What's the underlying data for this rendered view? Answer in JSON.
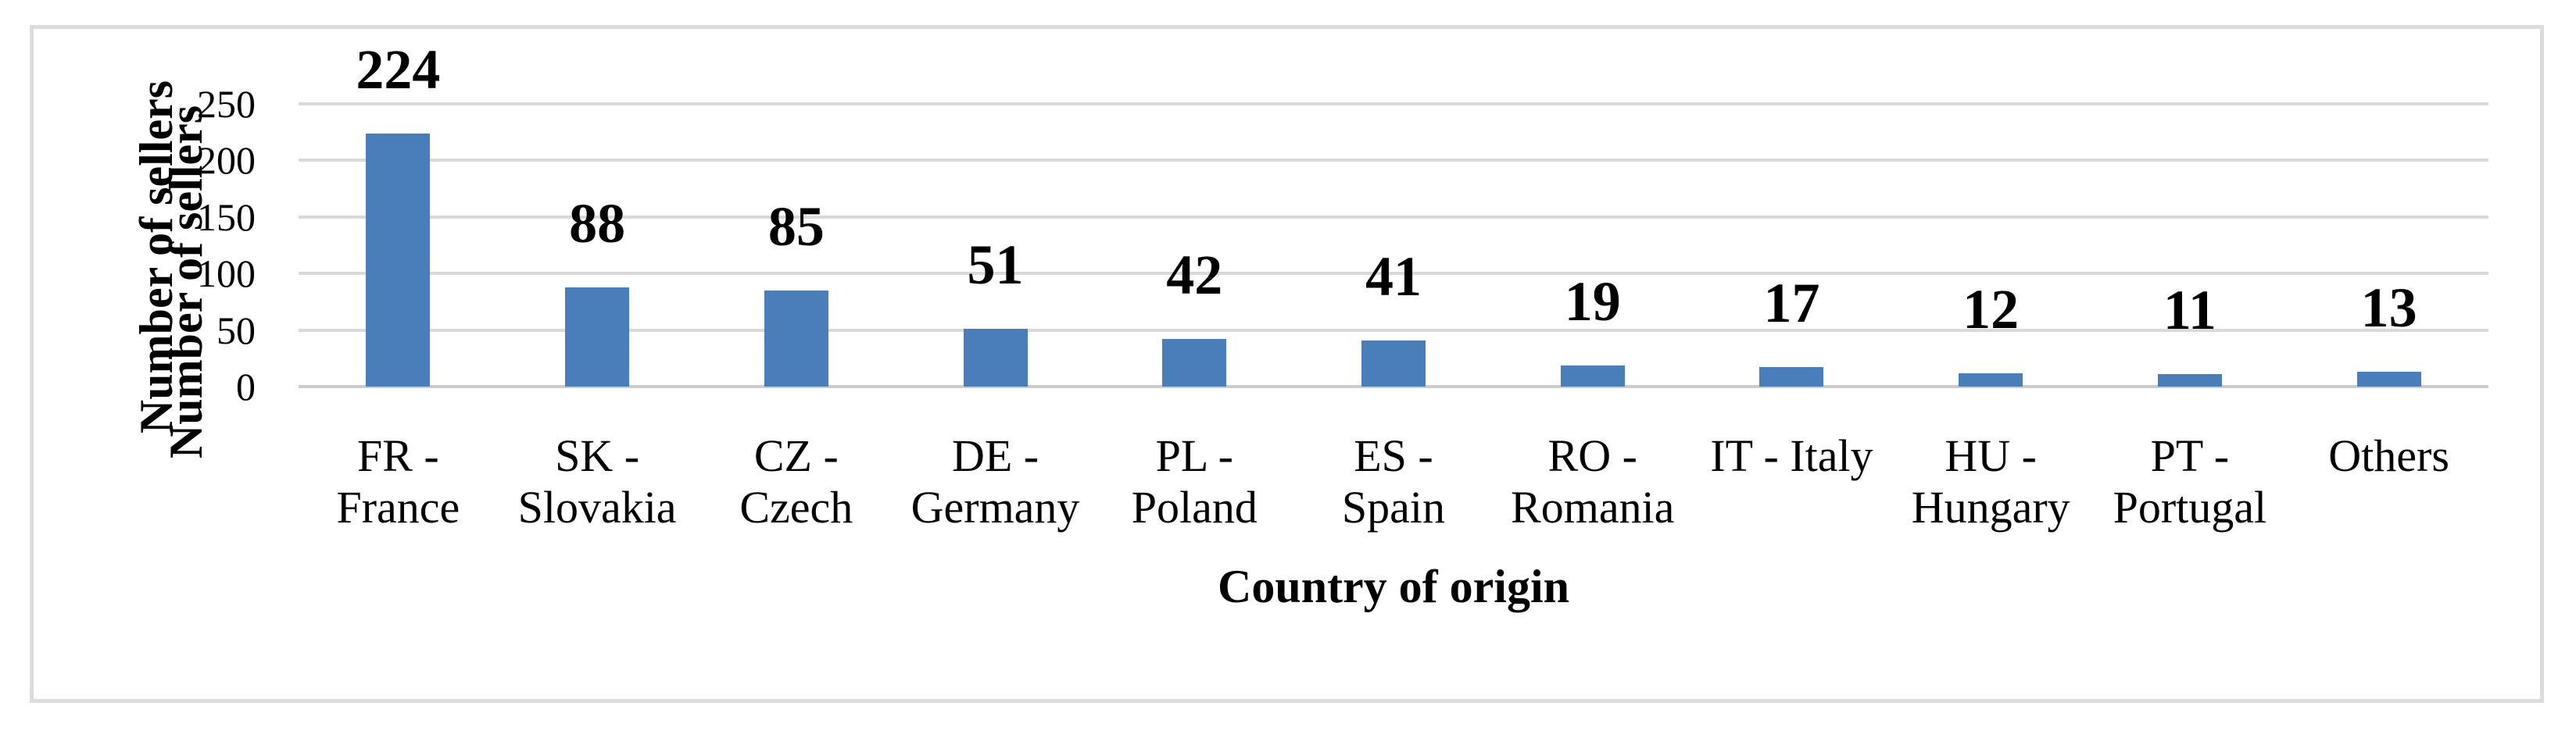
{
  "chart_data": {
    "type": "bar",
    "title": "",
    "xlabel": "Country of origin",
    "ylabel": "Number of sellers",
    "categories": [
      "FR - France",
      "SK - Slovakia",
      "CZ - Czech",
      "DE - Germany",
      "PL - Poland",
      "ES - Spain",
      "RO - Romania",
      "IT - Italy",
      "HU - Hungary",
      "PT - Portugal",
      "Others"
    ],
    "category_label_lines": [
      [
        "FR -",
        "France"
      ],
      [
        "SK -",
        "Slovakia"
      ],
      [
        "CZ -",
        "Czech"
      ],
      [
        "DE -",
        "Germany"
      ],
      [
        "PL -",
        "Poland"
      ],
      [
        "ES -",
        "Spain"
      ],
      [
        "RO -",
        "Romania"
      ],
      [
        "IT - Italy"
      ],
      [
        "HU -",
        "Hungary"
      ],
      [
        "PT -",
        "Portugal"
      ],
      [
        "Others"
      ]
    ],
    "values": [
      224,
      88,
      85,
      51,
      42,
      41,
      19,
      17,
      12,
      11,
      13
    ],
    "data_labels": [
      "224",
      "88",
      "85",
      "51",
      "42",
      "41",
      "19",
      "17",
      "12",
      "11",
      "13"
    ],
    "ylim": [
      0,
      250
    ],
    "yticks": [
      0,
      50,
      100,
      150,
      200,
      250
    ],
    "grid": true,
    "legend": "none",
    "bar_color": "#4a7ebb",
    "gridline_color": "#d9d9d9",
    "axis_line_color": "#cccccc",
    "frame_border_color": "#dcdcdc",
    "text_color": "#000000"
  }
}
